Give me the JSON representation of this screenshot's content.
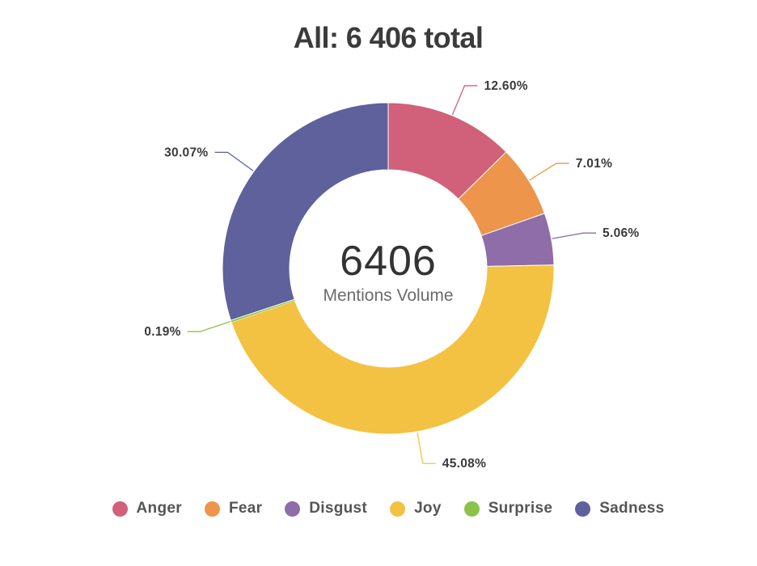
{
  "title": "All: 6 406 total",
  "center": {
    "value": "6406",
    "label": "Mentions Volume"
  },
  "chart_data": {
    "type": "pie",
    "donut": true,
    "title": "All: 6 406 total",
    "total": 6406,
    "categories": [
      "Anger",
      "Fear",
      "Disgust",
      "Joy",
      "Surprise",
      "Sadness"
    ],
    "values": [
      12.6,
      7.01,
      5.06,
      45.08,
      0.19,
      30.07
    ],
    "labels": [
      "12.60%",
      "7.01%",
      "5.06%",
      "45.08%",
      "0.19%",
      "30.07%"
    ],
    "colors": [
      "#d1607a",
      "#ec954b",
      "#8e6da8",
      "#f3c243",
      "#8bc34a",
      "#5e619b"
    ],
    "legend_position": "bottom"
  }
}
